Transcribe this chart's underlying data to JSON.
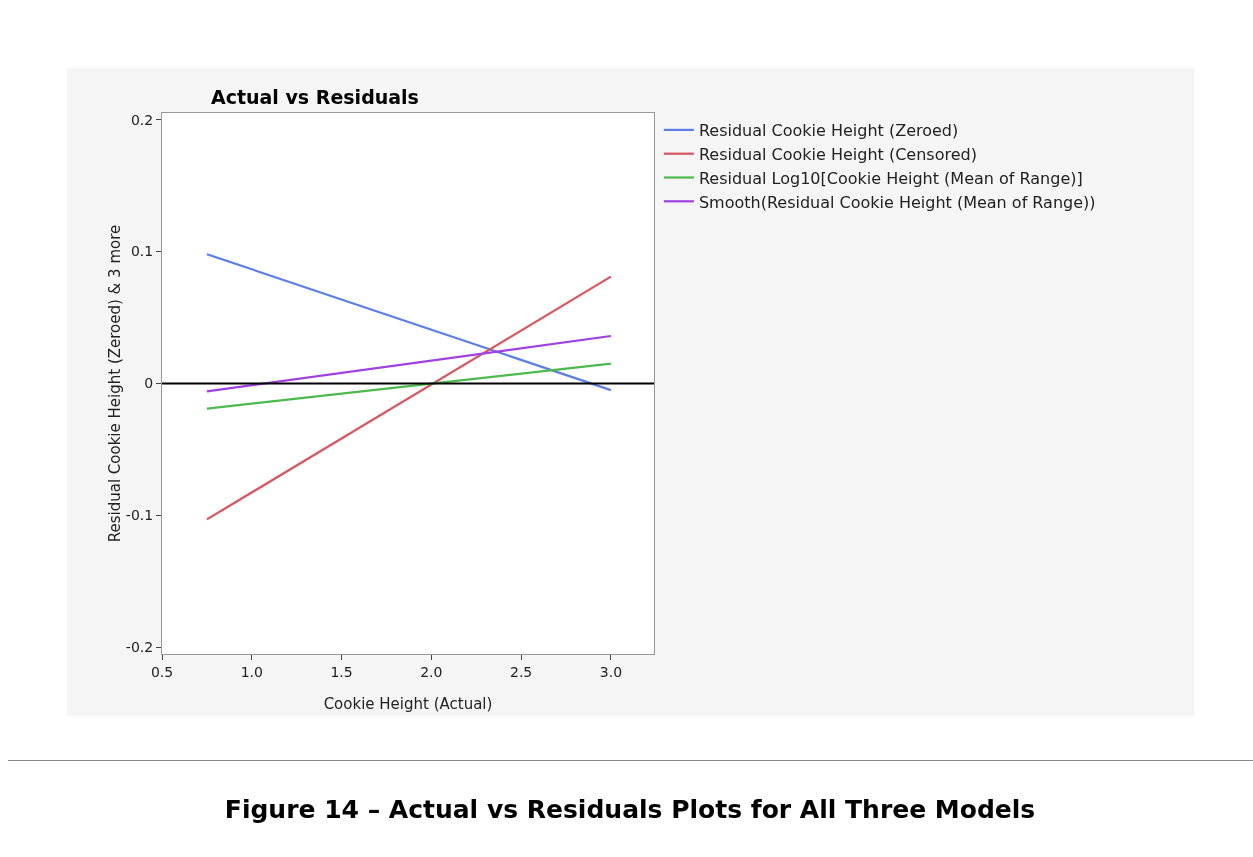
{
  "chart_data": {
    "type": "line",
    "title": "Actual vs Residuals",
    "xlabel": "Cookie Height (Actual)",
    "ylabel": "Residual Cookie Height (Zeroed) & 3 more",
    "x": [
      0.75,
      3.0
    ],
    "series": [
      {
        "name": "Residual Cookie Height (Zeroed)",
        "color": "#5b7fe6",
        "values": [
          0.098,
          -0.005
        ]
      },
      {
        "name": "Residual Cookie Height (Censored)",
        "color": "#d9545f",
        "values": [
          -0.103,
          0.081
        ]
      },
      {
        "name": "Residual Log10[Cookie Height (Mean of Range)]",
        "color": "#4cb94c",
        "values": [
          -0.019,
          0.015
        ]
      },
      {
        "name": "Smooth(Residual Cookie Height (Mean of Range))",
        "color": "#a040e0",
        "values": [
          -0.006,
          0.036
        ]
      }
    ],
    "xlim": [
      0.5,
      3.24
    ],
    "xticks": [
      {
        "value": 0.5,
        "label": "0.5"
      },
      {
        "value": 1,
        "label": "1.0"
      },
      {
        "value": 1.5,
        "label": "1.5"
      },
      {
        "value": 2,
        "label": "2.0"
      },
      {
        "value": 2.5,
        "label": "2.5"
      },
      {
        "value": 3,
        "label": "3.0"
      }
    ],
    "ylim": [
      -0.205,
      0.205
    ],
    "yticks": [
      -0.2,
      -0.1,
      0,
      0.1,
      0.2
    ],
    "ref_lines": [
      {
        "axis": "y",
        "value": 0,
        "color": "#000000"
      }
    ],
    "grid": false,
    "legend": "top right",
    "marker": "none",
    "line_style": "solid",
    "annotations": [
      "Figure 14 – Actual vs Residuals Plots for All Three Models"
    ]
  }
}
